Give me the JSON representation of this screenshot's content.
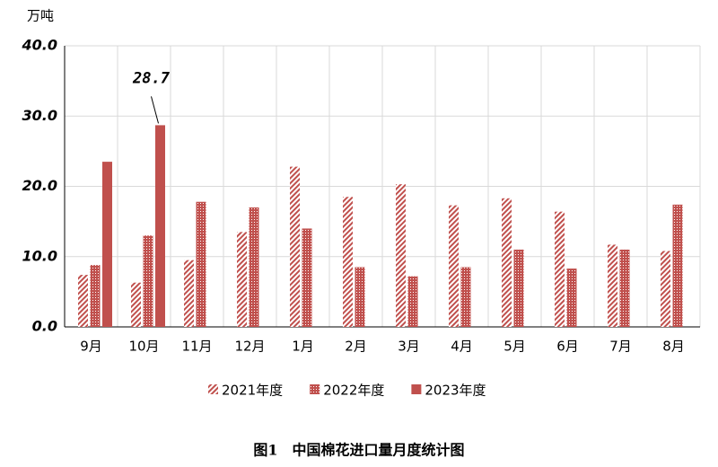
{
  "chart_data": {
    "type": "bar",
    "title": "图1　中国棉花进口量月度统计图",
    "y_label": "万吨",
    "categories": [
      "9月",
      "10月",
      "11月",
      "12月",
      "1月",
      "2月",
      "3月",
      "4月",
      "5月",
      "6月",
      "7月",
      "8月"
    ],
    "series": [
      {
        "name": "2021年度",
        "color": "#c0504d",
        "pattern": "hatch",
        "values": [
          7.4,
          6.3,
          9.5,
          13.5,
          22.8,
          18.5,
          20.3,
          17.3,
          18.3,
          16.4,
          11.7,
          10.8
        ]
      },
      {
        "name": "2022年度",
        "color": "#c0504d",
        "pattern": "dots",
        "values": [
          8.8,
          13.0,
          17.8,
          17.0,
          14.0,
          8.5,
          7.2,
          8.5,
          11.0,
          8.3,
          11.0,
          17.4
        ]
      },
      {
        "name": "2023年度",
        "color": "#c0504d",
        "pattern": "solid",
        "values": [
          23.5,
          28.7,
          null,
          null,
          null,
          null,
          null,
          null,
          null,
          null,
          null,
          null
        ],
        "value_label_index": 1
      }
    ],
    "ylim": [
      0,
      40
    ],
    "yticks": [
      {
        "value": 0,
        "label": "0.0"
      },
      {
        "value": 10,
        "label": "10.0"
      },
      {
        "value": 20,
        "label": "20.0"
      },
      {
        "value": 30,
        "label": "30.0"
      },
      {
        "value": 40,
        "label": "40.0"
      }
    ],
    "grid": true,
    "legend": "bottom"
  }
}
